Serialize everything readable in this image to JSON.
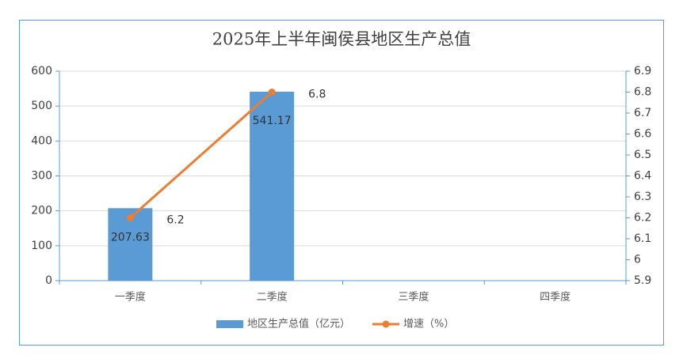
{
  "chart_data": {
    "type": "combo",
    "title": "2025年上半年闽侯县地区生产总值",
    "categories": [
      "一季度",
      "二季度",
      "三季度",
      "四季度"
    ],
    "series": [
      {
        "name": "地区生产总值（亿元）",
        "type": "bar",
        "color": "#5b9bd5",
        "values": [
          207.63,
          541.17,
          null,
          null
        ]
      },
      {
        "name": "增速（%）",
        "type": "line",
        "axis": "y2",
        "color": "#ed7d31",
        "values": [
          6.2,
          6.8,
          null,
          null
        ]
      }
    ],
    "ylim": [
      0,
      600
    ],
    "yticks": [
      0,
      100,
      200,
      300,
      400,
      500,
      600
    ],
    "y2lim": [
      5.9,
      6.9
    ],
    "y2ticks": [
      5.9,
      6,
      6.1,
      6.2,
      6.3,
      6.4,
      6.5,
      6.6,
      6.7,
      6.8,
      6.9
    ],
    "grid": true,
    "legend": "bottom"
  }
}
